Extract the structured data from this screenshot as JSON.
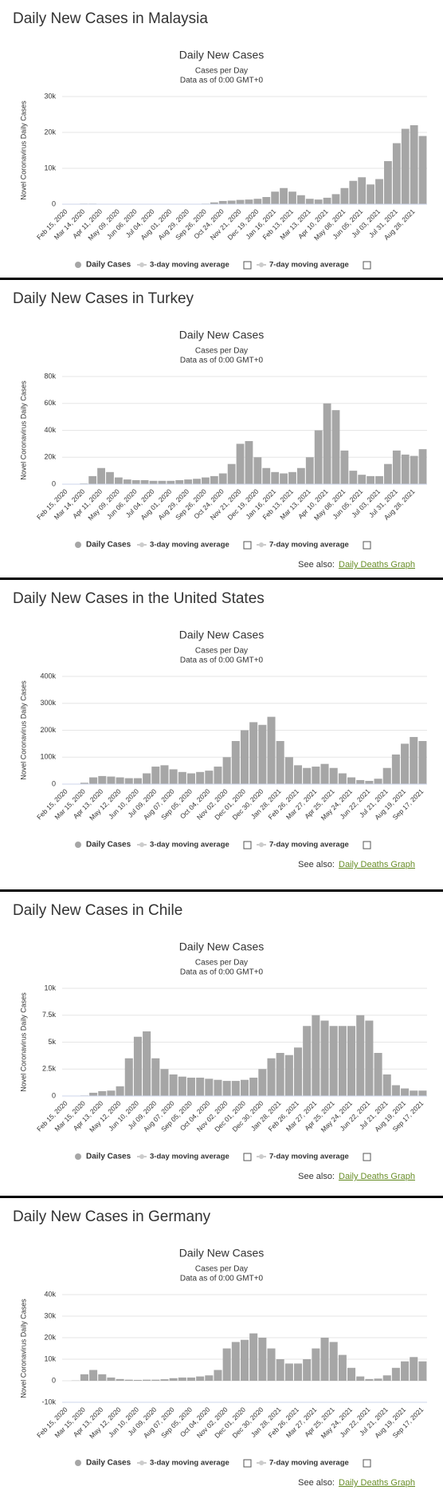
{
  "chart_data": [
    {
      "heading": "Daily New Cases in Malaysia",
      "type": "bar",
      "title": "Daily New Cases",
      "subtitle": "Cases per Day",
      "note": "Data as of 0:00 GMT+0",
      "y_label": "Novel Coronavirus Daily Cases",
      "categories": [
        "Feb 15, 2020",
        null,
        "Mar 14, 2020",
        null,
        "Apr 11, 2020",
        null,
        "May 09, 2020",
        null,
        "Jun 06, 2020",
        null,
        "Jul 04, 2020",
        null,
        "Aug 01, 2020",
        null,
        "Aug 29, 2020",
        null,
        "Sep 26, 2020",
        null,
        "Oct 24, 2020",
        null,
        "Nov 21, 2020",
        null,
        "Dec 19, 2020",
        null,
        "Jan 16, 2021",
        null,
        "Feb 13, 2021",
        null,
        "Mar 13, 2021",
        null,
        "Apr 10, 2021",
        null,
        "May 08, 2021",
        null,
        "Jun 05, 2021",
        null,
        "Jul 03, 2021",
        null,
        "Jul 31, 2021",
        null,
        "Aug 28, 2021",
        null
      ],
      "series": [
        {
          "name": "Daily Cases",
          "color": "#a6a6a6",
          "values": [
            0,
            10,
            150,
            150,
            100,
            50,
            30,
            20,
            20,
            10,
            10,
            15,
            15,
            20,
            20,
            50,
            150,
            500,
            900,
            1000,
            1200,
            1300,
            1500,
            2000,
            3500,
            4500,
            3500,
            2500,
            1500,
            1300,
            1800,
            2800,
            4500,
            6500,
            7500,
            5500,
            7000,
            12000,
            17000,
            21000,
            22000,
            19000
          ]
        }
      ],
      "legend_extra": [
        "3-day moving average",
        "7-day moving average"
      ],
      "ylim": [
        0,
        30000
      ],
      "yticks": [
        0,
        {
          "value": 10000,
          "label": "10k"
        },
        {
          "value": 20000,
          "label": "20k"
        },
        {
          "value": 30000,
          "label": "30k"
        }
      ],
      "grid": true
    },
    {
      "heading": "Daily New Cases in Turkey",
      "type": "bar",
      "title": "Daily New Cases",
      "subtitle": "Cases per Day",
      "note": "Data as of 0:00 GMT+0",
      "y_label": "Novel Coronavirus Daily Cases",
      "categories": [
        "Feb 15, 2020",
        null,
        "Mar 14, 2020",
        null,
        "Apr 11, 2020",
        null,
        "May 09, 2020",
        null,
        "Jun 06, 2020",
        null,
        "Jul 04, 2020",
        null,
        "Aug 01, 2020",
        null,
        "Aug 29, 2020",
        null,
        "Sep 26, 2020",
        null,
        "Oct 24, 2020",
        null,
        "Nov 21, 2020",
        null,
        "Dec 19, 2020",
        null,
        "Jan 16, 2021",
        null,
        "Feb 13, 2021",
        null,
        "Mar 13, 2021",
        null,
        "Apr 10, 2021",
        null,
        "May 08, 2021",
        null,
        "Jun 05, 2021",
        null,
        "Jul 03, 2021",
        null,
        "Jul 31, 2021",
        null,
        "Aug 28, 2021",
        null
      ],
      "series": [
        {
          "name": "Daily Cases",
          "color": "#a6a6a6",
          "values": [
            0,
            0,
            500,
            6000,
            12000,
            9000,
            5000,
            3500,
            3000,
            3000,
            2500,
            2500,
            2500,
            3000,
            3500,
            4000,
            5000,
            6000,
            8000,
            15000,
            30000,
            32000,
            20000,
            12000,
            9000,
            8000,
            9000,
            12000,
            20000,
            40000,
            60000,
            55000,
            25000,
            10000,
            7000,
            6000,
            6000,
            15000,
            25000,
            22000,
            21000,
            26000
          ]
        }
      ],
      "legend_extra": [
        "3-day moving average",
        "7-day moving average"
      ],
      "ylim": [
        0,
        80000
      ],
      "yticks": [
        0,
        {
          "value": 20000,
          "label": "20k"
        },
        {
          "value": 40000,
          "label": "40k"
        },
        {
          "value": 60000,
          "label": "60k"
        },
        {
          "value": 80000,
          "label": "80k"
        }
      ],
      "grid": true,
      "see_also": {
        "text": "See also:",
        "link": "Daily Deaths Graph"
      }
    },
    {
      "heading": "Daily New Cases in the United States",
      "type": "bar",
      "title": "Daily New Cases",
      "subtitle": "Cases per Day",
      "note": "Data as of 0:00 GMT+0",
      "y_label": "Novel Coronavirus Daily Cases",
      "categories": [
        "Feb 15, 2020",
        null,
        "Mar 15, 2020",
        null,
        "Apr 13, 2020",
        null,
        "May 12, 2020",
        null,
        "Jun 10, 2020",
        null,
        "Jul 09, 2020",
        null,
        "Aug 07, 2020",
        null,
        "Sep 05, 2020",
        null,
        "Oct 04, 2020",
        null,
        "Nov 02, 2020",
        null,
        "Dec 01, 2020",
        null,
        "Dec 30, 2020",
        null,
        "Jan 28, 2021",
        null,
        "Feb 26, 2021",
        null,
        "Mar 27, 2021",
        null,
        "Apr 25, 2021",
        null,
        "May 24, 2021",
        null,
        "Jun 22, 2021",
        null,
        "Jul 21, 2021",
        null,
        "Aug 19, 2021",
        null,
        "Sep 17, 2021"
      ],
      "series": [
        {
          "name": "Daily Cases",
          "color": "#a6a6a6",
          "values": [
            0,
            100,
            5000,
            25000,
            30000,
            28000,
            25000,
            22000,
            22000,
            40000,
            65000,
            70000,
            55000,
            45000,
            40000,
            45000,
            50000,
            65000,
            100000,
            160000,
            200000,
            230000,
            220000,
            250000,
            160000,
            100000,
            70000,
            60000,
            65000,
            75000,
            60000,
            40000,
            25000,
            15000,
            12000,
            20000,
            60000,
            110000,
            150000,
            175000,
            160000
          ]
        }
      ],
      "legend_extra": [
        "3-day moving average",
        "7-day moving average"
      ],
      "ylim": [
        0,
        400000
      ],
      "yticks": [
        0,
        {
          "value": 100000,
          "label": "100k"
        },
        {
          "value": 200000,
          "label": "200k"
        },
        {
          "value": 300000,
          "label": "300k"
        },
        {
          "value": 400000,
          "label": "400k"
        }
      ],
      "grid": true,
      "see_also": {
        "text": "See also:",
        "link": "Daily Deaths Graph"
      }
    },
    {
      "heading": "Daily New Cases in Chile",
      "type": "bar",
      "title": "Daily New Cases",
      "subtitle": "Cases per Day",
      "note": "Data as of 0:00 GMT+0",
      "y_label": "Novel Coronavirus Daily Cases",
      "categories": [
        "Feb 15, 2020",
        null,
        "Mar 15, 2020",
        null,
        "Apr 13, 2020",
        null,
        "May 12, 2020",
        null,
        "Jun 10, 2020",
        null,
        "Jul 09, 2020",
        null,
        "Aug 07, 2020",
        null,
        "Sep 05, 2020",
        null,
        "Oct 04, 2020",
        null,
        "Nov 02, 2020",
        null,
        "Dec 01, 2020",
        null,
        "Dec 30, 2020",
        null,
        "Jan 28, 2021",
        null,
        "Feb 26, 2021",
        null,
        "Mar 27, 2021",
        null,
        "Apr 25, 2021",
        null,
        "May 24, 2021",
        null,
        "Jun 22, 2021",
        null,
        "Jul 21, 2021",
        null,
        "Aug 19, 2021",
        null,
        "Sep 17, 2021"
      ],
      "series": [
        {
          "name": "Daily Cases",
          "color": "#a6a6a6",
          "values": [
            0,
            0,
            50,
            300,
            450,
            500,
            900,
            3500,
            5500,
            6000,
            3500,
            2500,
            2000,
            1800,
            1700,
            1700,
            1600,
            1500,
            1400,
            1400,
            1500,
            1700,
            2500,
            3500,
            4000,
            3800,
            4500,
            6500,
            7500,
            7000,
            6500,
            6500,
            6500,
            7500,
            7000,
            4000,
            2000,
            1000,
            700,
            500,
            500
          ]
        }
      ],
      "legend_extra": [
        "3-day moving average",
        "7-day moving average"
      ],
      "ylim": [
        0,
        10000
      ],
      "yticks": [
        0,
        {
          "value": 2500,
          "label": "2.5k"
        },
        {
          "value": 5000,
          "label": "5k"
        },
        {
          "value": 7500,
          "label": "7.5k"
        },
        {
          "value": 10000,
          "label": "10k"
        }
      ],
      "grid": true,
      "see_also": {
        "text": "See also:",
        "link": "Daily Deaths Graph"
      }
    },
    {
      "heading": "Daily New Cases in Germany",
      "type": "bar",
      "title": "Daily New Cases",
      "subtitle": "Cases per Day",
      "note": "Data as of 0:00 GMT+0",
      "y_label": "Novel Coronavirus Daily Cases",
      "categories": [
        "Feb 15, 2020",
        null,
        "Mar 15, 2020",
        null,
        "Apr 13, 2020",
        null,
        "May 12, 2020",
        null,
        "Jun 10, 2020",
        null,
        "Jul 09, 2020",
        null,
        "Aug 07, 2020",
        null,
        "Sep 05, 2020",
        null,
        "Oct 04, 2020",
        null,
        "Nov 02, 2020",
        null,
        "Dec 01, 2020",
        null,
        "Dec 30, 2020",
        null,
        "Jan 28, 2021",
        null,
        "Feb 26, 2021",
        null,
        "Mar 27, 2021",
        null,
        "Apr 25, 2021",
        null,
        "May 24, 2021",
        null,
        "Jun 22, 2021",
        null,
        "Jul 21, 2021",
        null,
        "Aug 19, 2021",
        null,
        "Sep 17, 2021"
      ],
      "series": [
        {
          "name": "Daily Cases",
          "color": "#a6a6a6",
          "values": [
            0,
            100,
            3000,
            5000,
            3000,
            1500,
            800,
            500,
            400,
            500,
            500,
            700,
            1200,
            1500,
            1500,
            2000,
            2500,
            5000,
            15000,
            18000,
            19000,
            22000,
            20000,
            15000,
            10000,
            8000,
            8000,
            10000,
            15000,
            20000,
            18000,
            12000,
            6000,
            2000,
            800,
            1000,
            2500,
            6000,
            9000,
            11000,
            9000
          ]
        }
      ],
      "legend_extra": [
        "3-day moving average",
        "7-day moving average"
      ],
      "ylim": [
        -10000,
        40000
      ],
      "yticks": [
        {
          "value": -10000,
          "label": "-10k"
        },
        0,
        {
          "value": 10000,
          "label": "10k"
        },
        {
          "value": 20000,
          "label": "20k"
        },
        {
          "value": 30000,
          "label": "30k"
        },
        {
          "value": 40000,
          "label": "40k"
        }
      ],
      "grid": true,
      "see_also": {
        "text": "See also:",
        "link": "Daily Deaths Graph"
      }
    }
  ]
}
